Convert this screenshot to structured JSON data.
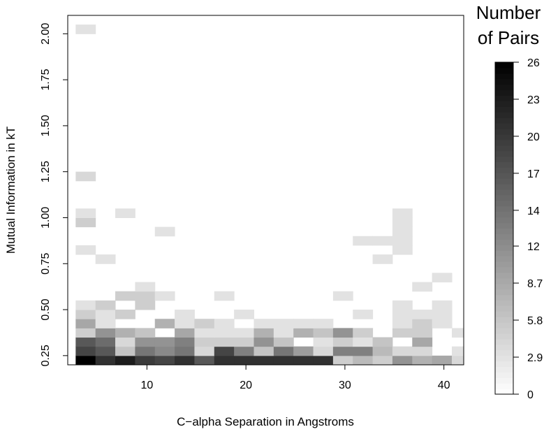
{
  "chart_data": {
    "type": "heatmap",
    "title": "",
    "xlabel": "C−alpha Separation in Angstroms",
    "ylabel": "Mutual Information in kT",
    "x_ticks": [
      "10",
      "20",
      "30",
      "40"
    ],
    "x_tick_values": [
      10,
      20,
      30,
      40
    ],
    "y_ticks": [
      "0.25",
      "0.50",
      "0.75",
      "1.00",
      "1.25",
      "1.50",
      "1.75",
      "2.00"
    ],
    "y_tick_values": [
      0.25,
      0.5,
      0.75,
      1.0,
      1.25,
      1.5,
      1.75,
      2.0
    ],
    "xlim": [
      2,
      42
    ],
    "ylim": [
      0.2,
      2.1
    ],
    "x_bin_start": 2.8,
    "x_bin_width": 2,
    "y_bin_start": 0.2,
    "y_bin_width": 0.05,
    "legend": {
      "title_line1": "Number",
      "title_line2": "of Pairs",
      "ticks": [
        "0",
        "2.9",
        "5.8",
        "8.7",
        "12",
        "14",
        "17",
        "20",
        "23",
        "26"
      ],
      "tick_values": [
        0,
        2.9,
        5.8,
        8.7,
        11.6,
        14.4,
        17.3,
        20.2,
        23.1,
        26
      ],
      "min": 0,
      "max": 26,
      "placement": "right"
    },
    "values": [
      [
        26,
        21,
        23,
        20,
        19,
        21,
        17,
        21,
        21,
        21,
        21,
        21,
        21,
        5,
        7,
        5,
        11,
        8,
        9,
        4
      ],
      [
        19,
        17,
        6,
        14,
        12,
        14,
        4,
        19,
        13,
        6,
        14,
        10,
        4,
        13,
        13,
        7,
        4,
        4,
        0,
        3
      ],
      [
        17,
        15,
        4,
        11,
        11,
        13,
        5,
        5,
        5,
        11,
        6,
        0,
        3,
        5,
        3,
        6,
        0,
        9,
        0,
        0
      ],
      [
        5,
        11,
        8,
        6,
        0,
        9,
        3,
        3,
        3,
        8,
        3,
        8,
        6,
        11,
        5,
        0,
        5,
        5,
        0,
        3
      ],
      [
        9,
        3,
        0,
        0,
        8,
        3,
        5,
        3,
        0,
        3,
        3,
        3,
        3,
        0,
        0,
        0,
        3,
        5,
        3,
        0
      ],
      [
        5,
        3,
        5,
        0,
        0,
        3,
        0,
        0,
        3,
        0,
        0,
        0,
        0,
        0,
        3,
        0,
        3,
        3,
        3,
        0
      ],
      [
        3,
        5,
        0,
        5,
        0,
        0,
        0,
        0,
        0,
        0,
        0,
        0,
        0,
        0,
        0,
        0,
        3,
        0,
        3,
        0
      ],
      [
        0,
        0,
        5,
        5,
        3,
        0,
        0,
        3,
        0,
        0,
        0,
        0,
        0,
        3,
        0,
        0,
        0,
        0,
        0,
        0
      ],
      [
        0,
        0,
        0,
        3,
        0,
        0,
        0,
        0,
        0,
        0,
        0,
        0,
        0,
        0,
        0,
        0,
        0,
        3,
        0,
        0
      ],
      [
        0,
        0,
        0,
        0,
        0,
        0,
        0,
        0,
        0,
        0,
        0,
        0,
        0,
        0,
        0,
        0,
        0,
        0,
        3,
        0
      ],
      [
        0,
        0,
        0,
        0,
        0,
        0,
        0,
        0,
        0,
        0,
        0,
        0,
        0,
        0,
        0,
        0,
        0,
        0,
        0,
        0
      ],
      [
        0,
        3,
        0,
        0,
        0,
        0,
        0,
        0,
        0,
        0,
        0,
        0,
        0,
        0,
        0,
        3,
        0,
        0,
        0,
        0
      ],
      [
        3,
        0,
        0,
        0,
        0,
        0,
        0,
        0,
        0,
        0,
        0,
        0,
        0,
        0,
        0,
        0,
        3,
        0,
        0,
        0
      ],
      [
        0,
        0,
        0,
        0,
        0,
        0,
        0,
        0,
        0,
        0,
        0,
        0,
        0,
        0,
        3,
        3,
        3,
        0,
        0,
        0
      ],
      [
        0,
        0,
        0,
        0,
        3,
        0,
        0,
        0,
        0,
        0,
        0,
        0,
        0,
        0,
        0,
        0,
        3,
        0,
        0,
        0
      ],
      [
        5,
        0,
        0,
        0,
        0,
        0,
        0,
        0,
        0,
        0,
        0,
        0,
        0,
        0,
        0,
        0,
        3,
        0,
        0,
        0
      ],
      [
        3,
        0,
        3,
        0,
        0,
        0,
        0,
        0,
        0,
        0,
        0,
        0,
        0,
        0,
        0,
        0,
        3,
        0,
        0,
        0
      ],
      [
        0,
        0,
        0,
        0,
        0,
        0,
        0,
        0,
        0,
        0,
        0,
        0,
        0,
        0,
        0,
        0,
        0,
        0,
        0,
        0
      ],
      [
        0,
        0,
        0,
        0,
        0,
        0,
        0,
        0,
        0,
        0,
        0,
        0,
        0,
        0,
        0,
        0,
        0,
        0,
        0,
        0
      ],
      [
        0,
        0,
        0,
        0,
        0,
        0,
        0,
        0,
        0,
        0,
        0,
        0,
        0,
        0,
        0,
        0,
        0,
        0,
        0,
        0
      ],
      [
        4,
        0,
        0,
        0,
        0,
        0,
        0,
        0,
        0,
        0,
        0,
        0,
        0,
        0,
        0,
        0,
        0,
        0,
        0,
        0
      ],
      [
        0,
        0,
        0,
        0,
        0,
        0,
        0,
        0,
        0,
        0,
        0,
        0,
        0,
        0,
        0,
        0,
        0,
        0,
        0,
        0
      ],
      [
        0,
        0,
        0,
        0,
        0,
        0,
        0,
        0,
        0,
        0,
        0,
        0,
        0,
        0,
        0,
        0,
        0,
        0,
        0,
        0
      ],
      [
        0,
        0,
        0,
        0,
        0,
        0,
        0,
        0,
        0,
        0,
        0,
        0,
        0,
        0,
        0,
        0,
        0,
        0,
        0,
        0
      ],
      [
        0,
        0,
        0,
        0,
        0,
        0,
        0,
        0,
        0,
        0,
        0,
        0,
        0,
        0,
        0,
        0,
        0,
        0,
        0,
        0
      ],
      [
        0,
        0,
        0,
        0,
        0,
        0,
        0,
        0,
        0,
        0,
        0,
        0,
        0,
        0,
        0,
        0,
        0,
        0,
        0,
        0
      ],
      [
        0,
        0,
        0,
        0,
        0,
        0,
        0,
        0,
        0,
        0,
        0,
        0,
        0,
        0,
        0,
        0,
        0,
        0,
        0,
        0
      ],
      [
        0,
        0,
        0,
        0,
        0,
        0,
        0,
        0,
        0,
        0,
        0,
        0,
        0,
        0,
        0,
        0,
        0,
        0,
        0,
        0
      ],
      [
        0,
        0,
        0,
        0,
        0,
        0,
        0,
        0,
        0,
        0,
        0,
        0,
        0,
        0,
        0,
        0,
        0,
        0,
        0,
        0
      ],
      [
        0,
        0,
        0,
        0,
        0,
        0,
        0,
        0,
        0,
        0,
        0,
        0,
        0,
        0,
        0,
        0,
        0,
        0,
        0,
        0
      ],
      [
        0,
        0,
        0,
        0,
        0,
        0,
        0,
        0,
        0,
        0,
        0,
        0,
        0,
        0,
        0,
        0,
        0,
        0,
        0,
        0
      ],
      [
        0,
        0,
        0,
        0,
        0,
        0,
        0,
        0,
        0,
        0,
        0,
        0,
        0,
        0,
        0,
        0,
        0,
        0,
        0,
        0
      ],
      [
        0,
        0,
        0,
        0,
        0,
        0,
        0,
        0,
        0,
        0,
        0,
        0,
        0,
        0,
        0,
        0,
        0,
        0,
        0,
        0
      ],
      [
        0,
        0,
        0,
        0,
        0,
        0,
        0,
        0,
        0,
        0,
        0,
        0,
        0,
        0,
        0,
        0,
        0,
        0,
        0,
        0
      ],
      [
        0,
        0,
        0,
        0,
        0,
        0,
        0,
        0,
        0,
        0,
        0,
        0,
        0,
        0,
        0,
        0,
        0,
        0,
        0,
        0
      ],
      [
        0,
        0,
        0,
        0,
        0,
        0,
        0,
        0,
        0,
        0,
        0,
        0,
        0,
        0,
        0,
        0,
        0,
        0,
        0,
        0
      ],
      [
        3,
        0,
        0,
        0,
        0,
        0,
        0,
        0,
        0,
        0,
        0,
        0,
        0,
        0,
        0,
        0,
        0,
        0,
        0,
        0
      ]
    ]
  }
}
